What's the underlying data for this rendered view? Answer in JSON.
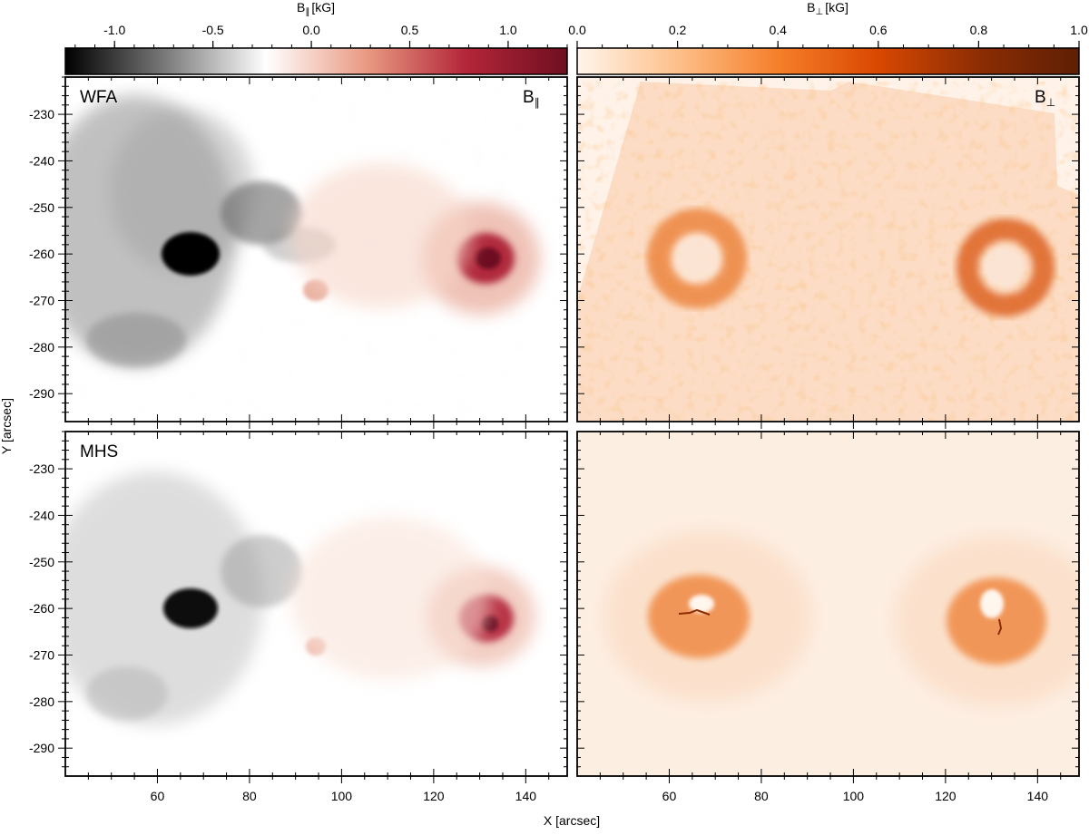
{
  "colorbars": {
    "left": {
      "label_main": "B",
      "label_sub": "∥",
      "label_unit": "[kG]",
      "min": -1.25,
      "max": 1.3,
      "ticks": [
        -1.0,
        -0.5,
        0.0,
        0.5,
        1.0
      ],
      "tick_labels": [
        "-1.0",
        "-0.5",
        "0.0",
        "0.5",
        "1.0"
      ],
      "colors": [
        "#000000",
        "#7a7a7a",
        "#ffffff",
        "#e89a82",
        "#b32539",
        "#6e0f20"
      ]
    },
    "right": {
      "label_main": "B",
      "label_sub": "⊥",
      "label_unit": "[kG]",
      "min": 0.0,
      "max": 1.0,
      "ticks": [
        0.0,
        0.2,
        0.4,
        0.6,
        0.8,
        1.0
      ],
      "tick_labels": [
        "0.0",
        "0.2",
        "0.4",
        "0.6",
        "0.8",
        "1.0"
      ],
      "colors": [
        "#fff5eb",
        "#fdc08a",
        "#f57f2a",
        "#d94801",
        "#8c2d04",
        "#5e1f04"
      ]
    }
  },
  "panels": {
    "tl": {
      "label": "WFA",
      "corner_main": "B",
      "corner_sub": "∥"
    },
    "tr": {
      "label": "",
      "corner_main": "B",
      "corner_sub": "⊥"
    },
    "bl": {
      "label": "MHS"
    },
    "br": {
      "label": ""
    }
  },
  "axes": {
    "xlabel": "X [arcsec]",
    "ylabel": "Y [arcsec]",
    "xlim": [
      40,
      149
    ],
    "ylim": [
      -296,
      -222
    ],
    "xticks": [
      60,
      80,
      100,
      120,
      140
    ],
    "xtick_labels": [
      "60",
      "80",
      "100",
      "120",
      "140"
    ],
    "yticks": [
      -230,
      -240,
      -250,
      -260,
      -270,
      -280,
      -290
    ],
    "ytick_labels": [
      "-230",
      "-240",
      "-250",
      "-260",
      "-270",
      "-280",
      "-290"
    ]
  },
  "chart_data": [
    {
      "type": "heatmap",
      "title": "WFA B∥",
      "quantity": "B∥ [kG]",
      "xlabel": "X [arcsec]",
      "ylabel": "Y [arcsec]",
      "xlim": [
        40,
        149
      ],
      "ylim": [
        -296,
        -222
      ],
      "features": [
        {
          "name": "negative umbra",
          "x": 66,
          "y": -260,
          "peak_kG": -1.25
        },
        {
          "name": "negative penumbra",
          "x": 63,
          "y": -257,
          "peak_kG": -0.45
        },
        {
          "name": "negative patch",
          "x": 82,
          "y": -252,
          "peak_kG": -0.4
        },
        {
          "name": "negative patch",
          "x": 60,
          "y": -277,
          "peak_kG": -0.25
        },
        {
          "name": "positive umbra",
          "x": 132,
          "y": -262,
          "peak_kG": 1.3
        },
        {
          "name": "positive penumbra",
          "x": 131,
          "y": -262,
          "peak_kG": 0.5
        },
        {
          "name": "positive patch",
          "x": 94,
          "y": -267,
          "peak_kG": 0.3
        }
      ]
    },
    {
      "type": "heatmap",
      "title": "WFA B⊥",
      "quantity": "B⊥ [kG]",
      "xlabel": "X [arcsec]",
      "ylabel": "Y [arcsec]",
      "xlim": [
        40,
        149
      ],
      "ylim": [
        -296,
        -222
      ],
      "features": [
        {
          "name": "ring around negative umbra",
          "x": 67,
          "y": -261,
          "peak_kG": 0.55
        },
        {
          "name": "ring around positive umbra",
          "x": 133,
          "y": -263,
          "peak_kG": 0.75
        },
        {
          "name": "quiet background",
          "x": 100,
          "y": -280,
          "peak_kG": 0.15
        }
      ]
    },
    {
      "type": "heatmap",
      "title": "MHS B∥",
      "quantity": "B∥ [kG]",
      "xlabel": "X [arcsec]",
      "ylabel": "Y [arcsec]",
      "xlim": [
        40,
        149
      ],
      "ylim": [
        -296,
        -222
      ],
      "features": [
        {
          "name": "negative umbra",
          "x": 66,
          "y": -260,
          "peak_kG": -1.25
        },
        {
          "name": "negative penumbra",
          "x": 64,
          "y": -258,
          "peak_kG": -0.35
        },
        {
          "name": "negative patch",
          "x": 82,
          "y": -251,
          "peak_kG": -0.3
        },
        {
          "name": "positive umbra",
          "x": 132,
          "y": -263,
          "peak_kG": 1.1
        },
        {
          "name": "positive penumbra",
          "x": 131,
          "y": -262,
          "peak_kG": 0.45
        },
        {
          "name": "positive patch",
          "x": 94,
          "y": -267,
          "peak_kG": 0.25
        }
      ]
    },
    {
      "type": "heatmap",
      "title": "MHS B⊥",
      "quantity": "B⊥ [kG]",
      "xlabel": "X [arcsec]",
      "ylabel": "Y [arcsec]",
      "xlim": [
        40,
        149
      ],
      "ylim": [
        -296,
        -222
      ],
      "features": [
        {
          "name": "negative spot transverse field",
          "x": 67,
          "y": -262,
          "peak_kG": 0.5
        },
        {
          "name": "positive spot transverse field",
          "x": 132,
          "y": -264,
          "peak_kG": 0.5
        },
        {
          "name": "background",
          "x": 100,
          "y": -280,
          "peak_kG": 0.08
        }
      ]
    }
  ]
}
